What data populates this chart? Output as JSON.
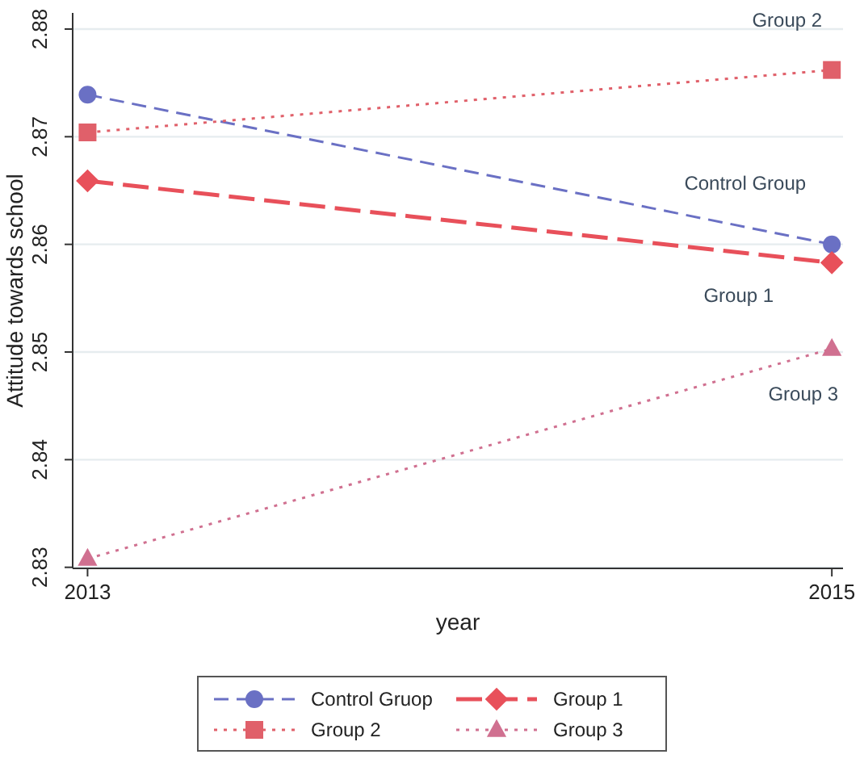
{
  "chart_data": {
    "type": "line",
    "xlabel": "year",
    "ylabel": "Attitude towards school",
    "x": [
      2013,
      2015
    ],
    "xlim": [
      2012.96,
      2015.03
    ],
    "xticks": [
      2013,
      2015
    ],
    "ylim": [
      2.8299,
      2.8815
    ],
    "yticks": [
      2.83,
      2.84,
      2.85,
      2.86,
      2.87,
      2.88
    ],
    "grid": "y",
    "legend": "bottom",
    "series": [
      {
        "name": "Control Gruop",
        "color": "#6a70c4",
        "values": [
          2.8739,
          2.86
        ],
        "marker": "circle",
        "line_style": "dashed"
      },
      {
        "name": "Group 1",
        "color": "#e8505a",
        "values": [
          2.8659,
          2.8583
        ],
        "marker": "diamond",
        "line_style": "dashed"
      },
      {
        "name": "Group 2",
        "color": "#e0606a",
        "values": [
          2.8704,
          2.8762
        ],
        "marker": "square",
        "line_style": "dotted"
      },
      {
        "name": "Group 3",
        "color": "#d07090",
        "values": [
          2.8308,
          2.8503
        ],
        "marker": "triangle",
        "line_style": "dotted"
      }
    ],
    "annotations": [
      "Control Group",
      "Group 1",
      "Group 2",
      "Group 3"
    ]
  }
}
